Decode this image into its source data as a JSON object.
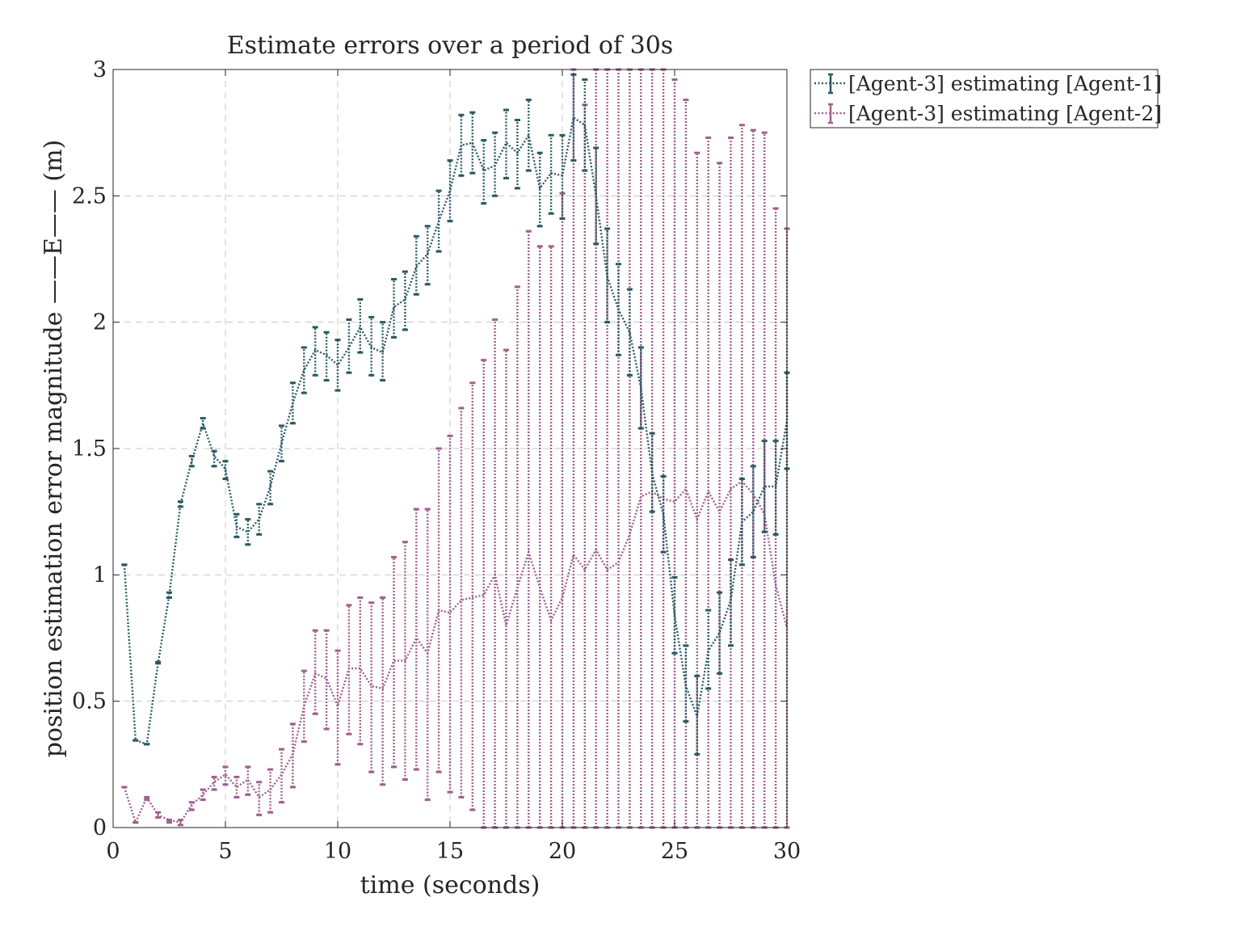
{
  "chart_data": {
    "type": "line",
    "title": "Estimate errors over a period of 30s",
    "xlabel": "time (seconds)",
    "ylabel": "position estimation error magnitude ——E—— (m)",
    "xlim": [
      0,
      30
    ],
    "ylim": [
      0,
      3
    ],
    "xticks": [
      "0",
      "5",
      "10",
      "15",
      "20",
      "25",
      "30"
    ],
    "yticks": [
      "0",
      "0.5",
      "1",
      "1.5",
      "2",
      "2.5",
      "3"
    ],
    "grid": true,
    "legend_position": "outside top-right",
    "x": [
      0.5,
      1,
      1.5,
      2,
      2.5,
      3,
      3.5,
      4,
      4.5,
      5,
      5.5,
      6,
      6.5,
      7,
      7.5,
      8,
      8.5,
      9,
      9.5,
      10,
      10.5,
      11,
      11.5,
      12,
      12.5,
      13,
      13.5,
      14,
      14.5,
      15,
      15.5,
      16,
      16.5,
      17,
      17.5,
      18,
      18.5,
      19,
      19.5,
      20,
      20.5,
      21,
      21.5,
      22,
      22.5,
      23,
      23.5,
      24,
      24.5,
      25,
      25.5,
      26,
      26.5,
      27,
      27.5,
      28,
      28.5,
      29,
      29.5,
      30
    ],
    "series": [
      {
        "name": "[Agent-3] estimating [Agent-1]",
        "color": "#2b5a63",
        "mean": [
          1.04,
          0.345,
          0.33,
          0.65,
          0.92,
          1.28,
          1.45,
          1.6,
          1.47,
          1.42,
          1.19,
          1.17,
          1.22,
          1.35,
          1.52,
          1.68,
          1.81,
          1.89,
          1.87,
          1.83,
          1.9,
          1.98,
          1.9,
          1.88,
          2.06,
          2.09,
          2.22,
          2.27,
          2.4,
          2.52,
          2.7,
          2.71,
          2.6,
          2.62,
          2.71,
          2.67,
          2.74,
          2.53,
          2.59,
          2.58,
          2.81,
          2.78,
          2.5,
          2.18,
          2.05,
          1.96,
          1.74,
          1.4,
          1.24,
          0.84,
          0.56,
          0.44,
          0.7,
          0.77,
          0.9,
          1.21,
          1.25,
          1.35,
          1.35,
          1.61
        ],
        "lower": [
          1.04,
          0.345,
          0.33,
          0.65,
          0.91,
          1.27,
          1.43,
          1.58,
          1.43,
          1.38,
          1.15,
          1.12,
          1.16,
          1.28,
          1.45,
          1.6,
          1.72,
          1.79,
          1.77,
          1.73,
          1.8,
          1.88,
          1.79,
          1.77,
          1.94,
          1.97,
          2.11,
          2.15,
          2.28,
          2.4,
          2.58,
          2.59,
          2.47,
          2.5,
          2.57,
          2.53,
          2.6,
          2.38,
          2.43,
          2.41,
          2.64,
          2.6,
          2.31,
          2.0,
          1.87,
          1.79,
          1.58,
          1.25,
          1.09,
          0.69,
          0.42,
          0.29,
          0.55,
          0.61,
          0.72,
          1.04,
          1.07,
          1.17,
          1.16,
          1.42
        ],
        "upper": [
          1.04,
          0.345,
          0.33,
          0.655,
          0.93,
          1.29,
          1.47,
          1.62,
          1.49,
          1.45,
          1.24,
          1.22,
          1.28,
          1.41,
          1.59,
          1.76,
          1.9,
          1.98,
          1.96,
          1.93,
          2.01,
          2.09,
          2.02,
          2.0,
          2.17,
          2.2,
          2.34,
          2.38,
          2.52,
          2.64,
          2.82,
          2.83,
          2.72,
          2.75,
          2.84,
          2.8,
          2.88,
          2.67,
          2.74,
          2.74,
          2.98,
          2.96,
          2.69,
          2.37,
          2.23,
          2.13,
          1.9,
          1.56,
          1.39,
          0.99,
          0.72,
          0.6,
          0.86,
          0.93,
          1.06,
          1.38,
          1.43,
          1.53,
          1.53,
          1.8
        ]
      },
      {
        "name": "[Agent-3] estimating [Agent-2]",
        "color": "#a0608e",
        "mean": [
          0.16,
          0.02,
          0.12,
          0.05,
          0.03,
          0.02,
          0.09,
          0.13,
          0.18,
          0.21,
          0.16,
          0.19,
          0.12,
          0.15,
          0.21,
          0.29,
          0.48,
          0.61,
          0.59,
          0.48,
          0.63,
          0.63,
          0.56,
          0.55,
          0.66,
          0.66,
          0.75,
          0.69,
          0.86,
          0.85,
          0.9,
          0.91,
          0.92,
          1.0,
          0.8,
          0.95,
          1.09,
          0.95,
          0.82,
          0.91,
          1.08,
          1.02,
          1.1,
          1.02,
          1.05,
          1.16,
          1.31,
          1.33,
          1.3,
          1.29,
          1.34,
          1.22,
          1.33,
          1.25,
          1.34,
          1.37,
          1.32,
          1.24,
          0.96,
          0.79
        ],
        "lower": [
          0.16,
          0.02,
          0.11,
          0.04,
          0.02,
          0.01,
          0.07,
          0.11,
          0.15,
          0.17,
          0.12,
          0.13,
          0.05,
          0.06,
          0.1,
          0.16,
          0.34,
          0.45,
          0.39,
          0.25,
          0.37,
          0.33,
          0.22,
          0.17,
          0.24,
          0.19,
          0.23,
          0.11,
          0.22,
          0.14,
          0.12,
          0.07,
          0.0,
          0.0,
          0.0,
          0.0,
          0.0,
          0.0,
          0.0,
          0.0,
          0.0,
          0.0,
          0.0,
          0.0,
          0.0,
          0.0,
          0.0,
          0.0,
          0.0,
          0.0,
          0.0,
          0.0,
          0.0,
          0.0,
          0.0,
          0.0,
          0.0,
          0.0,
          0.0,
          0.0
        ],
        "upper": [
          0.16,
          0.02,
          0.12,
          0.06,
          0.03,
          0.03,
          0.1,
          0.15,
          0.2,
          0.24,
          0.2,
          0.24,
          0.18,
          0.23,
          0.31,
          0.41,
          0.62,
          0.78,
          0.78,
          0.7,
          0.88,
          0.91,
          0.89,
          0.91,
          1.07,
          1.13,
          1.26,
          1.26,
          1.5,
          1.55,
          1.66,
          1.76,
          1.85,
          2.01,
          1.89,
          2.14,
          2.36,
          2.3,
          2.3,
          2.51,
          3.0,
          2.86,
          3.0,
          3.0,
          3.0,
          3.0,
          3.0,
          3.0,
          3.0,
          2.96,
          2.88,
          2.67,
          2.73,
          2.63,
          2.73,
          2.78,
          2.76,
          2.75,
          2.45,
          2.37
        ]
      }
    ]
  }
}
